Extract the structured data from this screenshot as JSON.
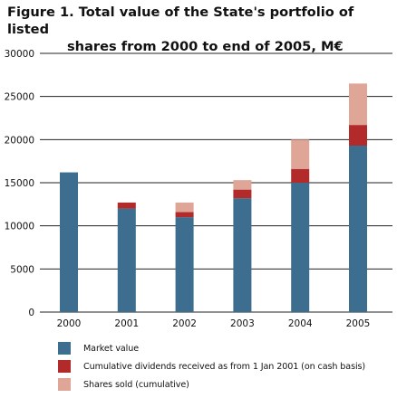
{
  "title": {
    "line1": "Figure 1. Total value of the State's portfolio of listed",
    "line2": "shares from 2000 to end of 2005, M€"
  },
  "chart_data": {
    "type": "bar",
    "stacked": true,
    "categories": [
      "2000",
      "2001",
      "2002",
      "2003",
      "2004",
      "2005"
    ],
    "series": [
      {
        "name": "Market value",
        "color": "#3d6e8f",
        "values": [
          16200,
          12000,
          11000,
          13200,
          15000,
          19300
        ]
      },
      {
        "name": "Cumulative dividends received as from 1 Jan 2001 (on cash basis)",
        "color": "#b22a2a",
        "values": [
          0,
          700,
          600,
          1000,
          1600,
          2400
        ]
      },
      {
        "name": "Shares sold (cumulative)",
        "color": "#dfa596",
        "values": [
          0,
          0,
          1100,
          1100,
          3400,
          4800
        ]
      }
    ],
    "ylim": [
      0,
      30000
    ],
    "yticks": [
      "0",
      "5000",
      "10000",
      "15000",
      "20000",
      "25000",
      "30000"
    ],
    "grid": true,
    "legend_position": "bottom",
    "xlabel": "",
    "ylabel": ""
  }
}
